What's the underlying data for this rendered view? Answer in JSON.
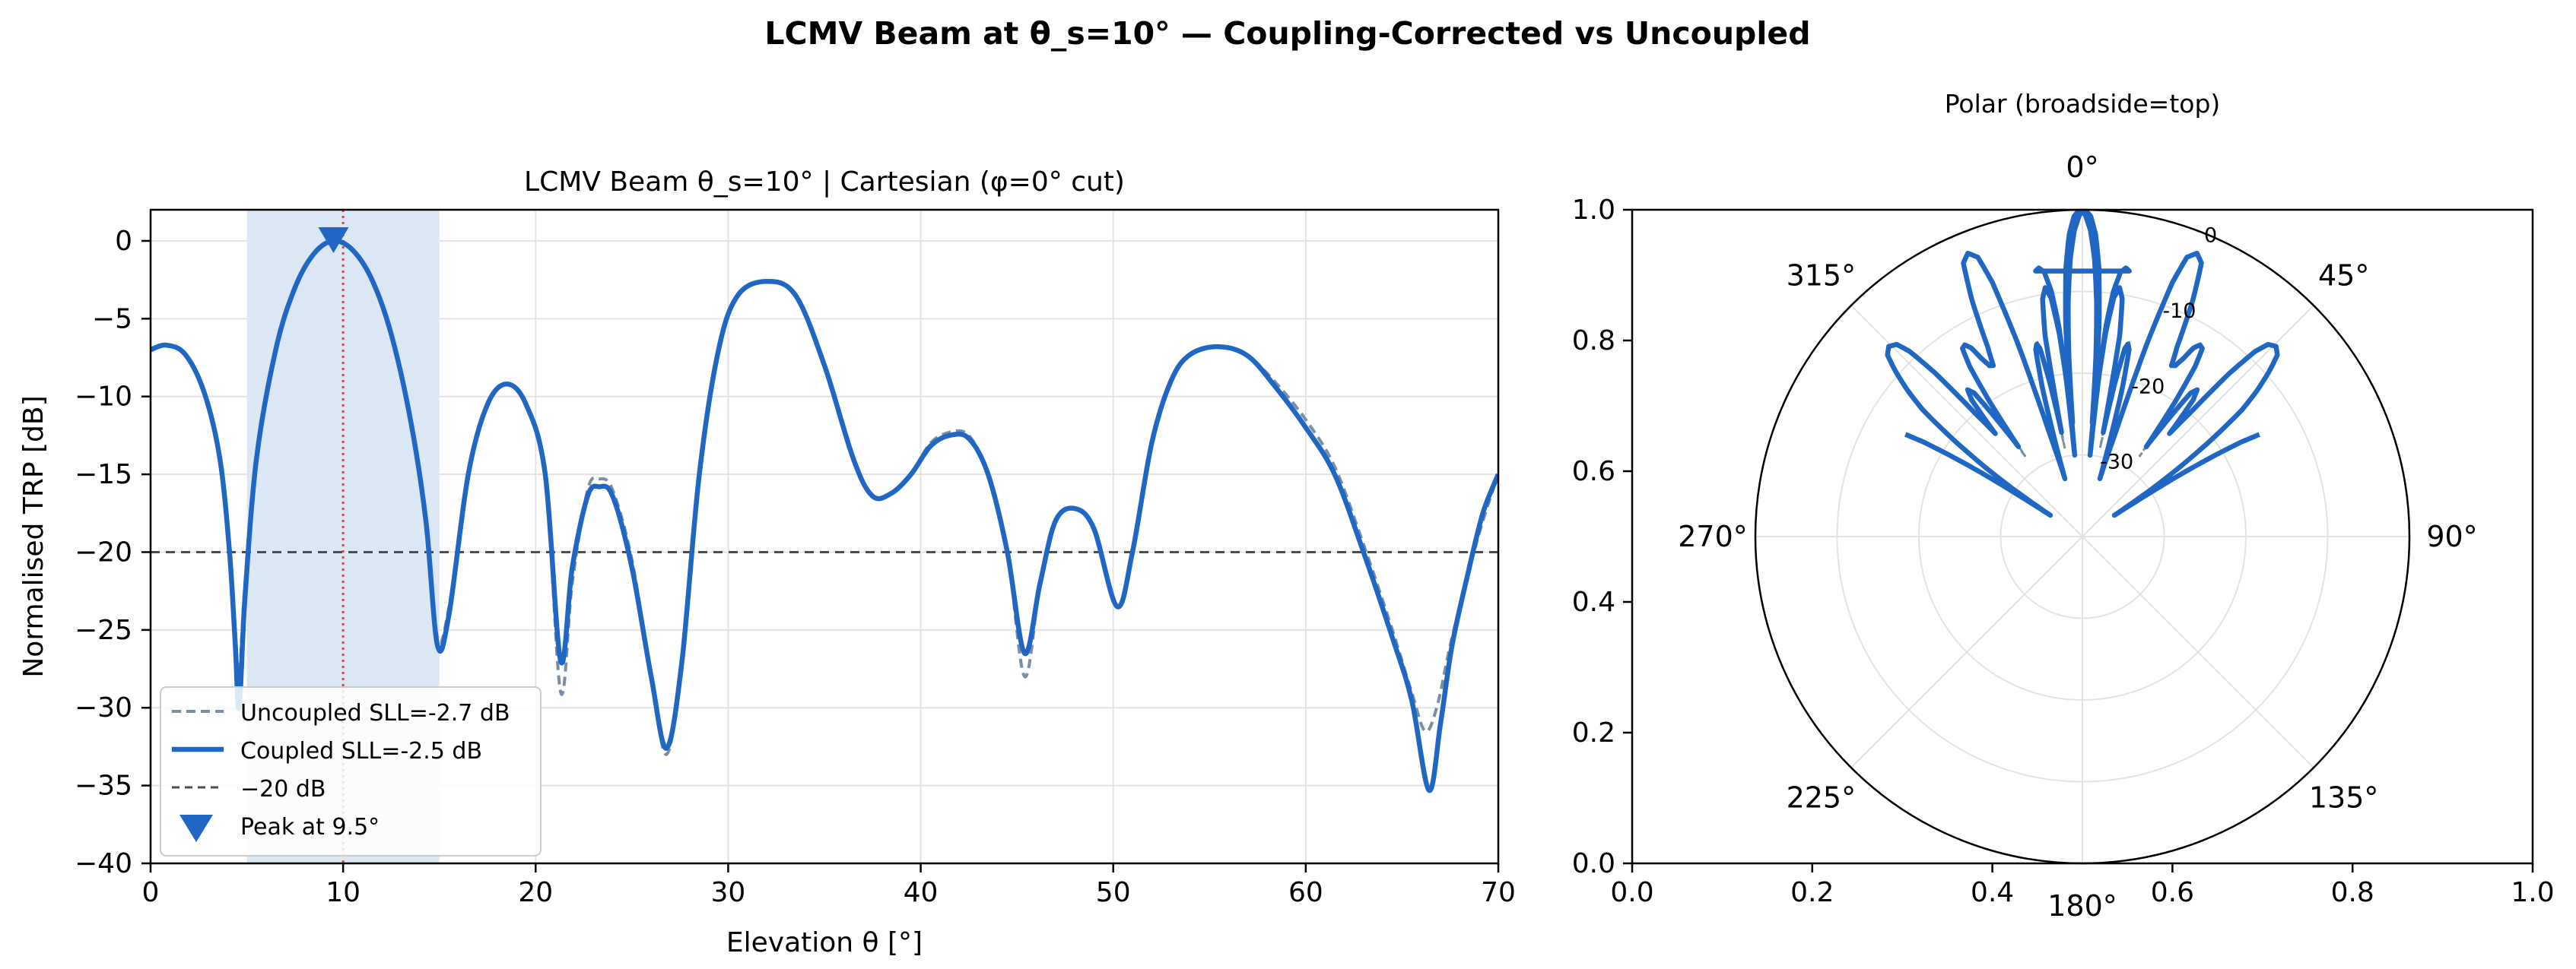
{
  "figure": {
    "suptitle": "LCMV Beam at θ_s=10° — Coupling-Corrected vs Uncoupled"
  },
  "colors": {
    "coupled": "#1f67c3",
    "uncoupled": "#7a8fa3",
    "threshold": "#4d4d4d",
    "steer_line": "#c0504d",
    "mainlobe_fill": "#dce7f6",
    "grid": "#e3e3e3"
  },
  "chart_data": [
    {
      "type": "line",
      "title": "LCMV Beam θ_s=10°  |  Cartesian (φ=0° cut)",
      "xlabel": "Elevation θ [°]",
      "ylabel": "Normalised TRP [dB]",
      "xlim": [
        0,
        70
      ],
      "ylim": [
        -40,
        2
      ],
      "xticks": [
        "0",
        "10",
        "20",
        "30",
        "40",
        "50",
        "60",
        "70"
      ],
      "yticks": [
        "0",
        "−5",
        "−10",
        "−15",
        "−20",
        "−25",
        "−30",
        "−35",
        "−40"
      ],
      "grid": true,
      "legend_position": "lower-left",
      "threshold_db": -20,
      "steer_angle": 10,
      "mainlobe_span": [
        5,
        15
      ],
      "peak": {
        "x": 9.5,
        "y": 0
      },
      "series": [
        {
          "name": "Uncoupled SLL=-2.7 dB",
          "style": "dashed",
          "points": [
            [
              0,
              -7
            ],
            [
              0.8,
              -6.7
            ],
            [
              1.8,
              -7.3
            ],
            [
              2.8,
              -9.8
            ],
            [
              3.6,
              -14
            ],
            [
              4.1,
              -20
            ],
            [
              4.4,
              -25
            ],
            [
              4.6,
              -28
            ],
            [
              4.9,
              -22
            ],
            [
              5.5,
              -14
            ],
            [
              6.5,
              -7
            ],
            [
              7.5,
              -3
            ],
            [
              8.5,
              -0.8
            ],
            [
              9.5,
              0
            ],
            [
              10.5,
              -0.6
            ],
            [
              11.5,
              -2.5
            ],
            [
              12.5,
              -6
            ],
            [
              13.5,
              -11.5
            ],
            [
              14.3,
              -18
            ],
            [
              14.9,
              -25.5
            ],
            [
              15.5,
              -23.5
            ],
            [
              16.5,
              -15
            ],
            [
              17.5,
              -10.5
            ],
            [
              18.5,
              -9.2
            ],
            [
              19.5,
              -10.5
            ],
            [
              20.5,
              -15
            ],
            [
              21.3,
              -29
            ],
            [
              21.9,
              -22
            ],
            [
              22.7,
              -16
            ],
            [
              23.3,
              -15.3
            ],
            [
              24,
              -16
            ],
            [
              25,
              -20.5
            ],
            [
              26,
              -28
            ],
            [
              26.8,
              -33
            ],
            [
              27.6,
              -27
            ],
            [
              28.5,
              -15
            ],
            [
              29.5,
              -7
            ],
            [
              30.5,
              -3.5
            ],
            [
              32,
              -2.6
            ],
            [
              33.5,
              -3.5
            ],
            [
              35,
              -8
            ],
            [
              36.5,
              -14
            ],
            [
              37.5,
              -16.4
            ],
            [
              38.5,
              -16.2
            ],
            [
              39.5,
              -15
            ],
            [
              40.5,
              -13
            ],
            [
              41.5,
              -12.3
            ],
            [
              42.5,
              -12.5
            ],
            [
              43.5,
              -15
            ],
            [
              44.5,
              -20
            ],
            [
              45.4,
              -28
            ],
            [
              46.2,
              -22
            ],
            [
              47,
              -18
            ],
            [
              48,
              -17.2
            ],
            [
              49,
              -18.5
            ],
            [
              50.2,
              -23.5
            ],
            [
              51,
              -20
            ],
            [
              52,
              -13
            ],
            [
              53,
              -9
            ],
            [
              54,
              -7.3
            ],
            [
              55.5,
              -6.8
            ],
            [
              57,
              -7.4
            ],
            [
              58.5,
              -9.2
            ],
            [
              60,
              -11.5
            ],
            [
              61.5,
              -14.5
            ],
            [
              63,
              -19.5
            ],
            [
              64.5,
              -25
            ],
            [
              65.5,
              -29
            ],
            [
              66.2,
              -31.5
            ],
            [
              66.8,
              -30
            ],
            [
              67.5,
              -26
            ],
            [
              68.3,
              -22
            ],
            [
              69.2,
              -18
            ],
            [
              70,
              -15
            ]
          ]
        },
        {
          "name": "Coupled SLL=-2.5 dB",
          "style": "solid",
          "points": [
            [
              0,
              -7
            ],
            [
              0.8,
              -6.7
            ],
            [
              1.8,
              -7.3
            ],
            [
              2.8,
              -9.8
            ],
            [
              3.6,
              -14
            ],
            [
              4.1,
              -20
            ],
            [
              4.4,
              -26
            ],
            [
              4.6,
              -30
            ],
            [
              4.9,
              -23
            ],
            [
              5.5,
              -14
            ],
            [
              6.5,
              -7
            ],
            [
              7.5,
              -3
            ],
            [
              8.5,
              -0.8
            ],
            [
              9.5,
              0
            ],
            [
              10.5,
              -0.6
            ],
            [
              11.5,
              -2.5
            ],
            [
              12.5,
              -6
            ],
            [
              13.5,
              -11.5
            ],
            [
              14.3,
              -18
            ],
            [
              14.9,
              -26
            ],
            [
              15.5,
              -24
            ],
            [
              16.5,
              -15
            ],
            [
              17.5,
              -10.5
            ],
            [
              18.5,
              -9.2
            ],
            [
              19.5,
              -10.5
            ],
            [
              20.5,
              -15
            ],
            [
              21.3,
              -27
            ],
            [
              21.9,
              -21
            ],
            [
              22.7,
              -16.4
            ],
            [
              23.3,
              -15.8
            ],
            [
              24,
              -16.4
            ],
            [
              25,
              -21
            ],
            [
              26,
              -28
            ],
            [
              26.8,
              -32.6
            ],
            [
              27.6,
              -27
            ],
            [
              28.5,
              -15
            ],
            [
              29.5,
              -7
            ],
            [
              30.5,
              -3.5
            ],
            [
              32,
              -2.6
            ],
            [
              33.5,
              -3.5
            ],
            [
              35,
              -8
            ],
            [
              36.5,
              -14
            ],
            [
              37.5,
              -16.4
            ],
            [
              38.5,
              -16.2
            ],
            [
              39.5,
              -15
            ],
            [
              40.5,
              -13.2
            ],
            [
              41.5,
              -12.5
            ],
            [
              42.5,
              -12.7
            ],
            [
              43.5,
              -15
            ],
            [
              44.5,
              -20
            ],
            [
              45.4,
              -26.5
            ],
            [
              46.2,
              -22
            ],
            [
              47,
              -18
            ],
            [
              48,
              -17.2
            ],
            [
              49,
              -18.5
            ],
            [
              50.2,
              -23.5
            ],
            [
              51,
              -20
            ],
            [
              52,
              -13
            ],
            [
              53,
              -9
            ],
            [
              54,
              -7.3
            ],
            [
              55.5,
              -6.8
            ],
            [
              57,
              -7.4
            ],
            [
              58.5,
              -9.5
            ],
            [
              60,
              -12
            ],
            [
              61.5,
              -15
            ],
            [
              63,
              -20
            ],
            [
              64.5,
              -25.5
            ],
            [
              65.5,
              -29.5
            ],
            [
              66.4,
              -35.3
            ],
            [
              67,
              -31
            ],
            [
              67.6,
              -26
            ],
            [
              68.4,
              -21.5
            ],
            [
              69.2,
              -17.5
            ],
            [
              70,
              -15
            ]
          ]
        },
        {
          "name": "−20 dB",
          "style": "dashed"
        },
        {
          "name": "Peak at 9.5°",
          "style": "marker"
        }
      ]
    },
    {
      "type": "line",
      "title": "Polar (broadside=top)",
      "xlim": [
        0,
        1
      ],
      "ylim": [
        0,
        1
      ],
      "xticks": [
        "0.0",
        "0.2",
        "0.4",
        "0.6",
        "0.8",
        "1.0"
      ],
      "yticks": [
        "0.0",
        "0.2",
        "0.4",
        "0.6",
        "0.8",
        "1.0"
      ],
      "angle_labels": [
        {
          "deg": 0,
          "label": "0°"
        },
        {
          "deg": 45,
          "label": "45°"
        },
        {
          "deg": 90,
          "label": "90°"
        },
        {
          "deg": 135,
          "label": "135°"
        },
        {
          "deg": 180,
          "label": "180°"
        },
        {
          "deg": 225,
          "label": "225°"
        },
        {
          "deg": 270,
          "label": "270°"
        },
        {
          "deg": 315,
          "label": "315°"
        }
      ],
      "radial_labels": [
        {
          "db": 0,
          "label": "0"
        },
        {
          "db": -10,
          "label": "-10"
        },
        {
          "db": -20,
          "label": "-20"
        },
        {
          "db": -30,
          "label": "-30"
        }
      ],
      "radial_range_db": [
        -40,
        0
      ],
      "grid": true,
      "mirror": true,
      "angular_span_deg": [
        -70,
        70
      ]
    }
  ]
}
